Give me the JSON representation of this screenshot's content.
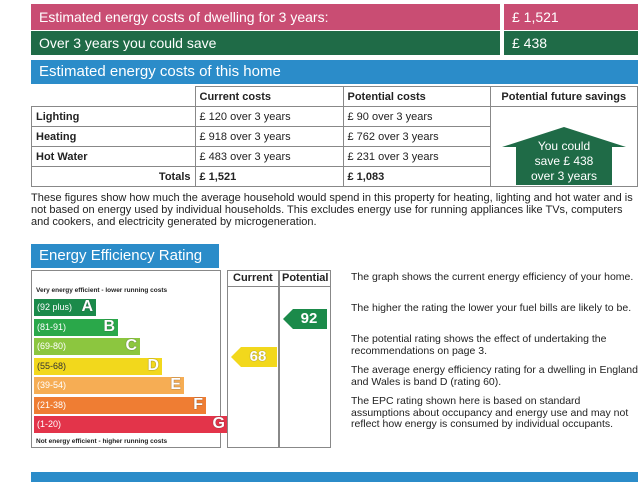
{
  "summary": {
    "cost_label": "Estimated energy costs of dwelling for 3 years:",
    "cost_value": "£ 1,521",
    "save_label": "Over 3 years you could save",
    "save_value": "£ 438"
  },
  "costs_section": {
    "title": "Estimated energy costs of this home",
    "headers": [
      "",
      "Current costs",
      "Potential costs",
      "Potential future savings"
    ],
    "rows": [
      {
        "label": "Lighting",
        "current": "£ 120 over 3 years",
        "potential": "£ 90 over 3 years"
      },
      {
        "label": "Heating",
        "current": "£ 918 over 3 years",
        "potential": "£ 762 over 3 years"
      },
      {
        "label": "Hot Water",
        "current": "£ 483 over 3 years",
        "potential": "£ 231 over 3 years"
      }
    ],
    "totals_label": "Totals",
    "totals_current": "£ 1,521",
    "totals_potential": "£ 1,083",
    "savings_line1": "You could",
    "savings_line2": "save £ 438",
    "savings_line3": "over 3 years",
    "description": "These figures show how much the average household would spend in this property for heating, lighting and hot water and is not based on energy used by individual households. This excludes energy use for running appliances like TVs, computers and cookers, and electricity generated by microgeneration."
  },
  "rating_section": {
    "title": "Energy Efficiency Rating",
    "top_label": "Very energy efficient - lower running costs",
    "bottom_label": "Not energy efficient - higher running costs",
    "col_current": "Current",
    "col_potential": "Potential",
    "current_value": "68",
    "potential_value": "92",
    "bands": [
      {
        "range": "(92 plus)",
        "letter": "A",
        "color": "#1b8a4a"
      },
      {
        "range": "(81-91)",
        "letter": "B",
        "color": "#2aa84a"
      },
      {
        "range": "(69-80)",
        "letter": "C",
        "color": "#8cc63f"
      },
      {
        "range": "(55-68)",
        "letter": "D",
        "color": "#f2d81c"
      },
      {
        "range": "(39-54)",
        "letter": "E",
        "color": "#f6ad54"
      },
      {
        "range": "(21-38)",
        "letter": "F",
        "color": "#ef7d33"
      },
      {
        "range": "(1-20)",
        "letter": "G",
        "color": "#e3344a"
      }
    ],
    "notes": [
      "The graph shows the current energy efficiency of your home.",
      "The higher the rating the lower your fuel bills are likely to be.",
      "The potential rating shows the effect of undertaking the recommendations on page 3.",
      "The average energy efficiency rating for a dwelling in England and Wales is band D (rating 60).",
      "The EPC rating shown here is based on standard assumptions about occupancy and energy use and may not reflect how energy is consumed by individual occupants."
    ]
  },
  "colors": {
    "pink": "#c94d73",
    "green": "#1f6b47",
    "blue": "#2b8cc9"
  }
}
